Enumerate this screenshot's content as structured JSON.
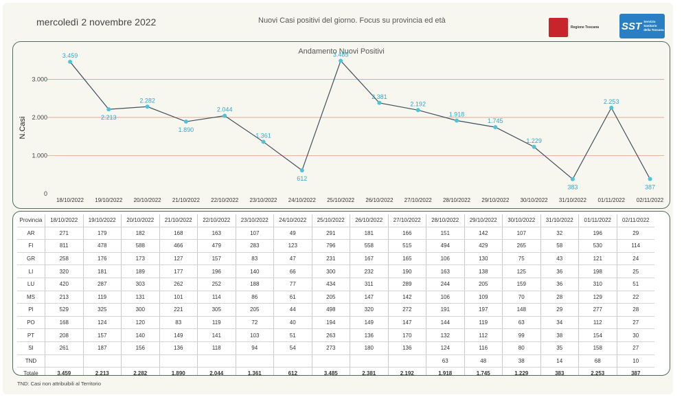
{
  "header": {
    "date": "mercoledì 2 novembre 2022",
    "title": "Nuovi Casi positivi del giorno. Focus su provincia ed età",
    "logo_region": "Regione Toscana",
    "logo_sst_abbr": "SST",
    "logo_sst_text": "Servizio Sanitario della Toscana"
  },
  "colors": {
    "line": "#3f4f5c",
    "marker": "#4fc3d9",
    "label": "#34a6c8",
    "grid": "#e0a080"
  },
  "chart_data": {
    "type": "line",
    "title": "Andamento Nuovi Positivi",
    "ylabel": "N.Casi",
    "xlabel": "",
    "ylim": [
      0,
      3800
    ],
    "yticks": [
      0,
      1000,
      2000,
      3000
    ],
    "ytick_labels": [
      "0",
      "1.000",
      "2.000",
      "3.000"
    ],
    "categories": [
      "18/10/2022",
      "19/10/2022",
      "20/10/2022",
      "21/10/2022",
      "22/10/2022",
      "23/10/2022",
      "24/10/2022",
      "25/10/2022",
      "26/10/2022",
      "27/10/2022",
      "28/10/2022",
      "29/10/2022",
      "30/10/2022",
      "31/10/2022",
      "01/11/2022",
      "02/11/2022"
    ],
    "values": [
      3459,
      2213,
      2282,
      1890,
      2044,
      1361,
      612,
      3485,
      2381,
      2192,
      1918,
      1745,
      1229,
      383,
      2253,
      387
    ],
    "value_labels": [
      "3.459",
      "2.213",
      "2.282",
      "1.890",
      "2.044",
      "1.361",
      "612",
      "3.485",
      "2.381",
      "2.192",
      "1.918",
      "1.745",
      "1.229",
      "383",
      "2.253",
      "387"
    ],
    "label_positions": [
      "above",
      "below",
      "above",
      "below",
      "above",
      "above",
      "below",
      "above",
      "above",
      "above",
      "above",
      "above",
      "above",
      "below",
      "above",
      "below"
    ],
    "grid": true
  },
  "table": {
    "header_label": "Provincia",
    "columns": [
      "18/10/2022",
      "19/10/2022",
      "20/10/2022",
      "21/10/2022",
      "22/10/2022",
      "23/10/2022",
      "24/10/2022",
      "25/10/2022",
      "26/10/2022",
      "27/10/2022",
      "28/10/2022",
      "29/10/2022",
      "30/10/2022",
      "31/10/2022",
      "01/11/2022",
      "02/11/2022"
    ],
    "rows": [
      {
        "name": "AR",
        "values": [
          "271",
          "179",
          "182",
          "168",
          "163",
          "107",
          "49",
          "291",
          "181",
          "166",
          "151",
          "142",
          "107",
          "32",
          "196",
          "29"
        ]
      },
      {
        "name": "FI",
        "values": [
          "811",
          "478",
          "588",
          "466",
          "479",
          "283",
          "123",
          "796",
          "558",
          "515",
          "494",
          "429",
          "265",
          "58",
          "530",
          "114"
        ]
      },
      {
        "name": "GR",
        "values": [
          "258",
          "176",
          "173",
          "127",
          "157",
          "83",
          "47",
          "231",
          "167",
          "165",
          "106",
          "130",
          "75",
          "43",
          "121",
          "24"
        ]
      },
      {
        "name": "LI",
        "values": [
          "320",
          "181",
          "189",
          "177",
          "196",
          "140",
          "66",
          "300",
          "232",
          "190",
          "163",
          "138",
          "125",
          "36",
          "198",
          "25"
        ]
      },
      {
        "name": "LU",
        "values": [
          "420",
          "287",
          "303",
          "262",
          "252",
          "188",
          "77",
          "434",
          "311",
          "289",
          "244",
          "205",
          "159",
          "36",
          "310",
          "51"
        ]
      },
      {
        "name": "MS",
        "values": [
          "213",
          "119",
          "131",
          "101",
          "114",
          "86",
          "61",
          "205",
          "147",
          "142",
          "106",
          "109",
          "70",
          "28",
          "129",
          "22"
        ]
      },
      {
        "name": "PI",
        "values": [
          "529",
          "325",
          "300",
          "221",
          "305",
          "205",
          "44",
          "498",
          "320",
          "272",
          "191",
          "197",
          "148",
          "29",
          "277",
          "28"
        ]
      },
      {
        "name": "PO",
        "values": [
          "168",
          "124",
          "120",
          "83",
          "119",
          "72",
          "40",
          "194",
          "149",
          "147",
          "144",
          "119",
          "63",
          "34",
          "112",
          "27"
        ]
      },
      {
        "name": "PT",
        "values": [
          "208",
          "157",
          "140",
          "149",
          "141",
          "103",
          "51",
          "263",
          "136",
          "170",
          "132",
          "112",
          "99",
          "38",
          "154",
          "30"
        ]
      },
      {
        "name": "SI",
        "values": [
          "261",
          "187",
          "156",
          "136",
          "118",
          "94",
          "54",
          "273",
          "180",
          "136",
          "124",
          "116",
          "80",
          "35",
          "158",
          "27"
        ]
      },
      {
        "name": "TND",
        "values": [
          "",
          "",
          "",
          "",
          "",
          "",
          "",
          "",
          "",
          "",
          "63",
          "48",
          "38",
          "14",
          "68",
          "10"
        ]
      }
    ],
    "total": {
      "name": "Totale",
      "values": [
        "3.459",
        "2.213",
        "2.282",
        "1.890",
        "2.044",
        "1.361",
        "612",
        "3.485",
        "2.381",
        "2.192",
        "1.918",
        "1.745",
        "1.229",
        "383",
        "2.253",
        "387"
      ]
    }
  },
  "footnote": "TND:  Casi non attribuibili al Territorio"
}
